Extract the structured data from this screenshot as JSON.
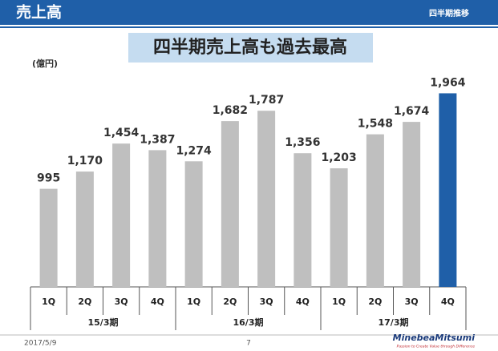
{
  "header": {
    "title": "売上高",
    "subtitle": "四半期推移"
  },
  "chart_data": {
    "type": "bar",
    "title": "四半期売上高も過去最高",
    "unit": "(億円)",
    "categories": [
      "1Q",
      "2Q",
      "3Q",
      "4Q",
      "1Q",
      "2Q",
      "3Q",
      "4Q",
      "1Q",
      "2Q",
      "3Q",
      "4Q"
    ],
    "groups": [
      "15/3期",
      "16/3期",
      "17/3期"
    ],
    "values": [
      995,
      1170,
      1454,
      1387,
      1274,
      1682,
      1787,
      1356,
      1203,
      1548,
      1674,
      1964
    ],
    "value_labels": [
      "995",
      "1,170",
      "1,454",
      "1,387",
      "1,274",
      "1,682",
      "1,787",
      "1,356",
      "1,203",
      "1,548",
      "1,674",
      "1,964"
    ],
    "colors": [
      "#bfbfbf",
      "#bfbfbf",
      "#bfbfbf",
      "#bfbfbf",
      "#bfbfbf",
      "#bfbfbf",
      "#bfbfbf",
      "#bfbfbf",
      "#bfbfbf",
      "#bfbfbf",
      "#bfbfbf",
      "#1f5fa8"
    ],
    "ylim": [
      0,
      2000
    ]
  },
  "footer": {
    "date": "2017/5/9",
    "page": 7,
    "logo": "MinebeaMitsumi",
    "tagline": "Passion to Create Value through Difference"
  }
}
